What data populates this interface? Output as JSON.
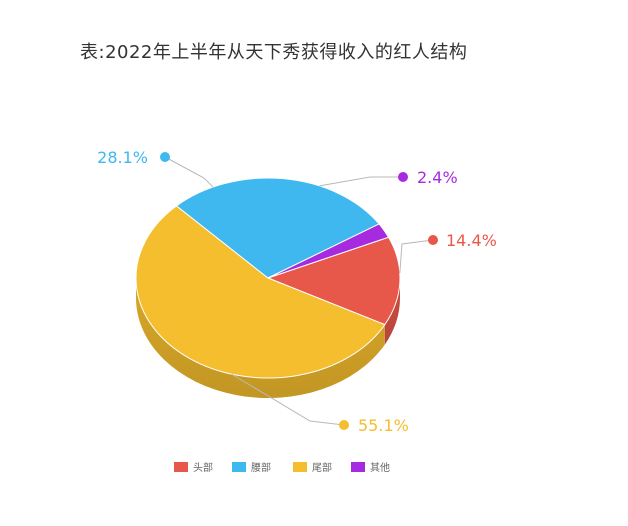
{
  "title": "表:2022年上半年从天下秀获得收入的红人结构",
  "chart_data": {
    "type": "pie",
    "title": "表:2022年上半年从天下秀获得收入的红人结构",
    "slices": [
      {
        "name": "头部",
        "value": 14.4,
        "label": "14.4%",
        "color": "#E8584A"
      },
      {
        "name": "腰部",
        "value": 28.1,
        "label": "28.1%",
        "color": "#3FB8F0"
      },
      {
        "name": "尾部",
        "value": 55.1,
        "label": "55.1%",
        "color": "#F5BE2E"
      },
      {
        "name": "其他",
        "value": 2.4,
        "label": "2.4%",
        "color": "#A62BE0"
      }
    ],
    "legend_position": "bottom"
  }
}
